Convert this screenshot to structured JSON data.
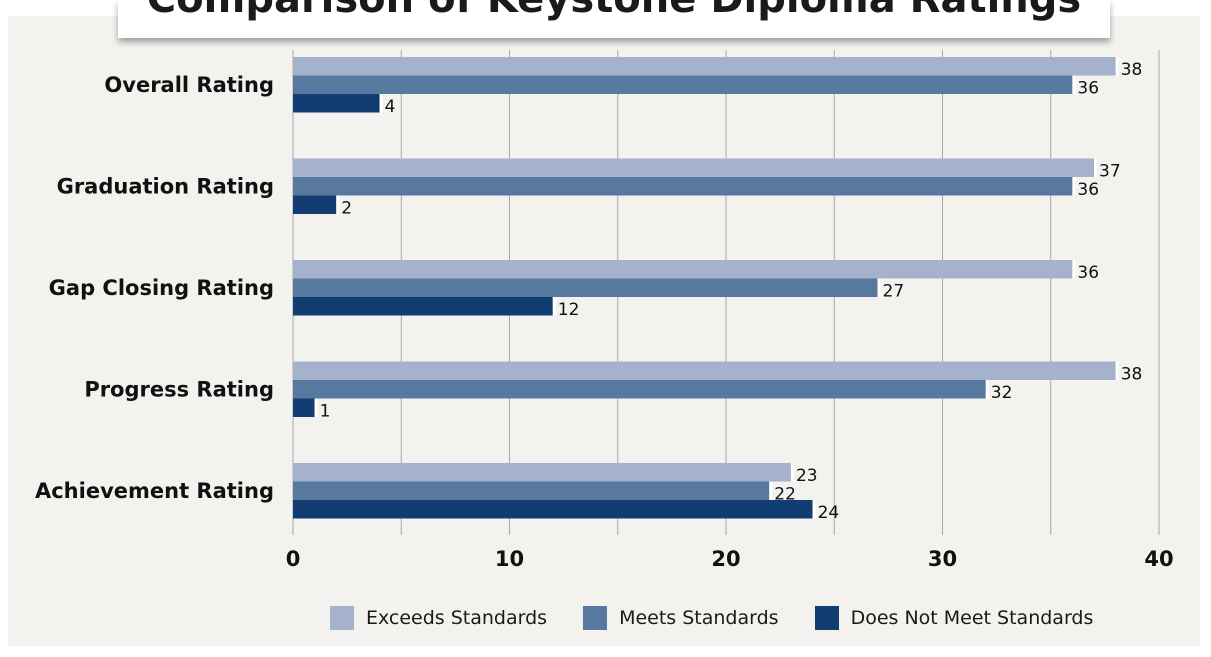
{
  "title": "Comparison of Keystone Diploma Ratings",
  "colors": {
    "exceeds": "#a4b3cb",
    "meets": "#57799f",
    "does_not_meet": "#123d72",
    "gridline": "#a8a8a8",
    "background": "#f3f2ee"
  },
  "chart_data": {
    "type": "bar",
    "orientation": "horizontal",
    "categories": [
      "Overall Rating",
      "Graduation Rating",
      "Gap Closing Rating",
      "Progress Rating",
      "Achievement Rating"
    ],
    "series": [
      {
        "name": "Exceeds Standards",
        "values": [
          38,
          37,
          36,
          38,
          23
        ]
      },
      {
        "name": "Meets Standards",
        "values": [
          36,
          36,
          27,
          32,
          22
        ]
      },
      {
        "name": "Does Not Meet Standards",
        "values": [
          4,
          2,
          12,
          1,
          24
        ]
      }
    ],
    "xlim": [
      0,
      40
    ],
    "x_ticks": [
      "0",
      "10",
      "20",
      "30",
      "40"
    ],
    "grid": "vertical",
    "legend_position": "bottom"
  },
  "legend": [
    {
      "label": "Exceeds Standards"
    },
    {
      "label": "Meets Standards"
    },
    {
      "label": "Does Not Meet Standards"
    }
  ]
}
